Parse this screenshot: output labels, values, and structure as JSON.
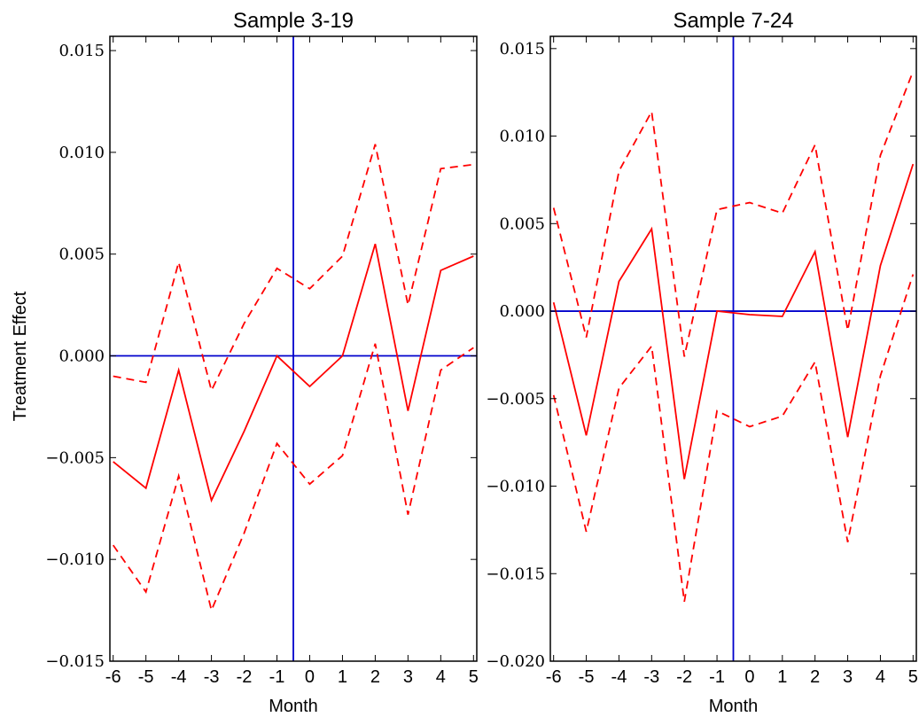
{
  "ylabel": "Treatment Effect",
  "colors": {
    "estimate": "#ff0000",
    "reference": "#0000cc"
  },
  "chart_data": [
    {
      "type": "line",
      "title": "Sample 3-19",
      "xlabel": "Month",
      "ylabel": "Treatment Effect",
      "x": [
        -6,
        -5,
        -4,
        -3,
        -2,
        -1,
        0,
        1,
        2,
        3,
        4,
        5
      ],
      "xlim": [
        -6.1,
        5.1
      ],
      "ylim": [
        -0.015,
        0.0157
      ],
      "yticks": [
        "0.015",
        "0.010",
        "0.005",
        "0.000",
        "−0.005",
        "−0.010",
        "−0.015"
      ],
      "ytick_values": [
        0.015,
        0.01,
        0.005,
        0.0,
        -0.005,
        -0.01,
        -0.015
      ],
      "vline_x": -0.5,
      "hline_y": 0,
      "series": [
        {
          "style": "solid",
          "values": [
            -0.0052,
            -0.0065,
            -0.0007,
            -0.0071,
            -0.0037,
            0.0,
            -0.0015,
            0.0,
            0.0055,
            -0.0027,
            0.0042,
            0.0049
          ]
        },
        {
          "style": "dashed",
          "values": [
            -0.001,
            -0.0013,
            0.0046,
            -0.0017,
            0.0016,
            0.0043,
            0.0033,
            0.0049,
            0.0104,
            0.0025,
            0.0092,
            0.0094
          ]
        },
        {
          "style": "dashed",
          "values": [
            -0.0093,
            -0.0116,
            -0.0059,
            -0.0125,
            -0.0087,
            -0.0043,
            -0.0063,
            -0.0049,
            0.0006,
            -0.0078,
            -0.0007,
            0.0004
          ]
        }
      ]
    },
    {
      "type": "line",
      "title": "Sample 7-24",
      "xlabel": "Month",
      "ylabel": "",
      "x": [
        -6,
        -5,
        -4,
        -3,
        -2,
        -1,
        0,
        1,
        2,
        3,
        4,
        5
      ],
      "xlim": [
        -6.1,
        5.1
      ],
      "ylim": [
        -0.02,
        0.0157
      ],
      "yticks": [
        "0.015",
        "0.010",
        "0.005",
        "0.000",
        "−0.005",
        "−0.010",
        "−0.015",
        "−0.020"
      ],
      "ytick_values": [
        0.015,
        0.01,
        0.005,
        0.0,
        -0.005,
        -0.01,
        -0.015,
        -0.02
      ],
      "vline_x": -0.5,
      "hline_y": 0,
      "series": [
        {
          "style": "solid",
          "values": [
            0.0005,
            -0.0071,
            0.0017,
            0.0047,
            -0.0096,
            0.0,
            -0.0002,
            -0.0003,
            0.0034,
            -0.0072,
            0.0026,
            0.0084
          ]
        },
        {
          "style": "dashed",
          "values": [
            0.0059,
            -0.0015,
            0.008,
            0.0114,
            -0.0026,
            0.0058,
            0.0062,
            0.0056,
            0.0095,
            -0.0011,
            0.0089,
            0.0137
          ]
        },
        {
          "style": "dashed",
          "values": [
            -0.0048,
            -0.0126,
            -0.0044,
            -0.002,
            -0.0166,
            -0.0057,
            -0.0066,
            -0.006,
            -0.0029,
            -0.0132,
            -0.0037,
            0.0021
          ]
        }
      ]
    }
  ]
}
